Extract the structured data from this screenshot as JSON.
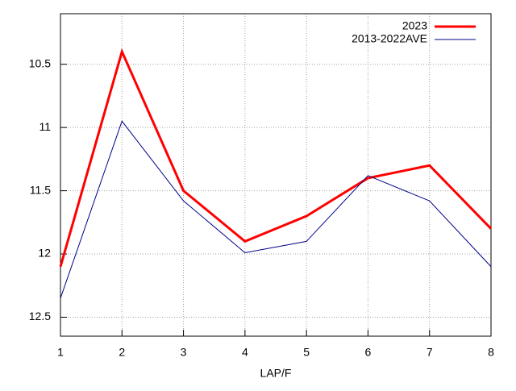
{
  "chart_data": {
    "type": "line",
    "x_label": "LAP/F",
    "x": [
      1,
      2,
      3,
      4,
      5,
      6,
      7,
      8
    ],
    "series": [
      {
        "name": "2023",
        "color": "#ff0000",
        "values": [
          12.1,
          10.4,
          11.5,
          11.9,
          11.7,
          11.4,
          11.3,
          11.8
        ]
      },
      {
        "name": "2013-2022AVE",
        "color": "#00008b",
        "values": [
          12.35,
          10.95,
          11.58,
          11.99,
          11.9,
          11.38,
          11.58,
          12.1
        ]
      }
    ],
    "xlim": [
      1,
      8
    ],
    "xticks": [
      1,
      2,
      3,
      4,
      5,
      6,
      7,
      8
    ],
    "ylim": [
      10.1,
      12.65
    ],
    "yticks": [
      10.5,
      11,
      11.5,
      12,
      12.5
    ],
    "y_reversed": true,
    "grid": true,
    "legend": "top-right"
  }
}
